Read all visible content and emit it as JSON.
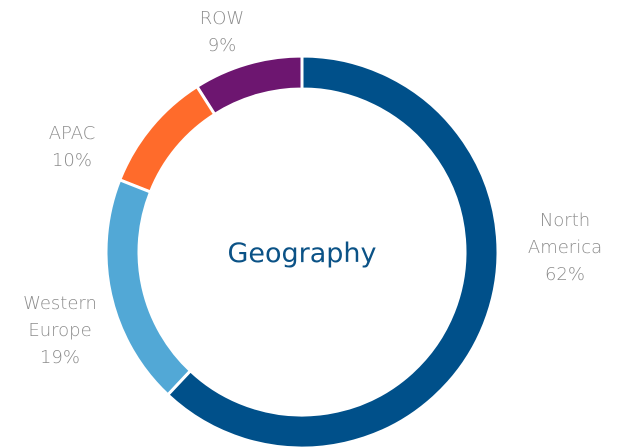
{
  "chart_data": {
    "type": "donut",
    "title": "Geography",
    "categories": [
      "North America",
      "Western Europe",
      "APAC",
      "ROW"
    ],
    "values": [
      62,
      19,
      10,
      9
    ],
    "value_labels": [
      "62%",
      "19%",
      "10%",
      "9%"
    ],
    "colors": [
      "#00508a",
      "#52a8d6",
      "#ff6b2b",
      "#6d1670"
    ]
  }
}
